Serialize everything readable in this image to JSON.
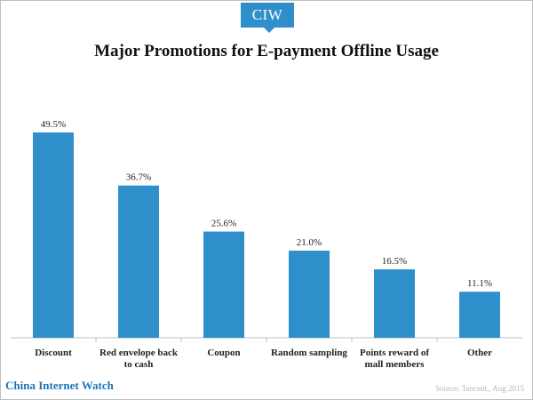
{
  "header": {
    "logo_text": "CIW"
  },
  "chart_data": {
    "type": "bar",
    "title": "Major Promotions for E-payment Offline Usage",
    "categories": [
      [
        "Discount"
      ],
      [
        "Red envelope back",
        "to cash"
      ],
      [
        "Coupon"
      ],
      [
        "Random sampling"
      ],
      [
        "Points reward of",
        "mall members"
      ],
      [
        "Other"
      ]
    ],
    "values": [
      49.5,
      36.7,
      25.6,
      21.0,
      16.5,
      11.1
    ],
    "data_labels": [
      "49.5%",
      "36.7%",
      "25.6%",
      "21.0%",
      "16.5%",
      "11.1%"
    ],
    "ylim": [
      0,
      60
    ],
    "grid": false,
    "legend": "none",
    "bar_color": "#2e8fca"
  },
  "footer": {
    "brand": "China Internet Watch",
    "source": "Source: Tencent,, Aug 2015"
  },
  "colors": {
    "accent": "#2e8fca",
    "brand_text": "#1e75b5"
  }
}
